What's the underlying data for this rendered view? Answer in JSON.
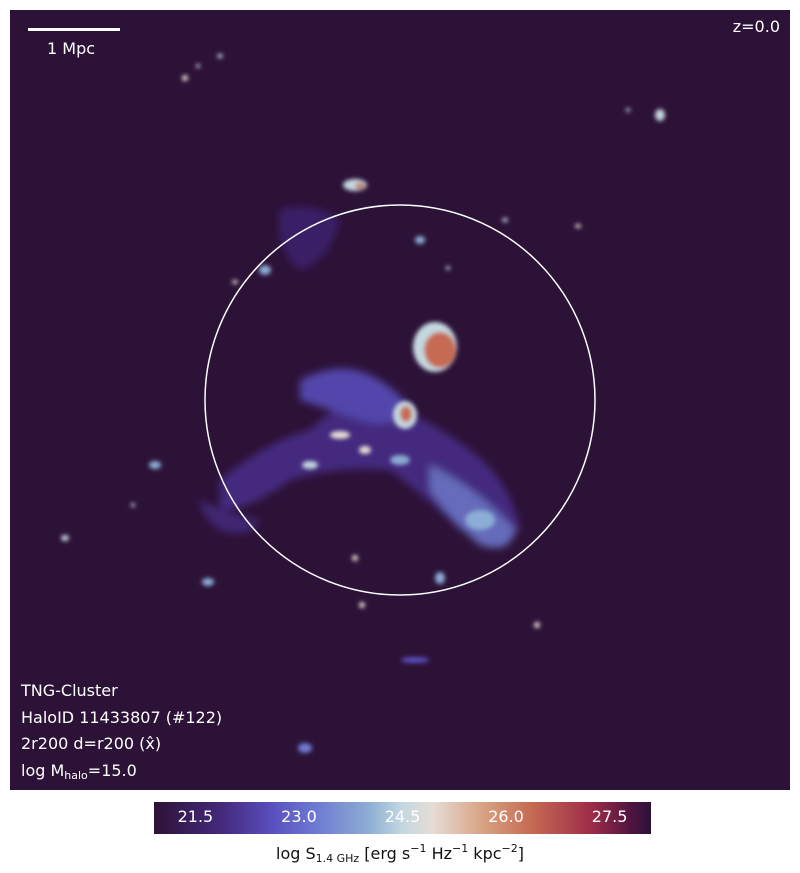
{
  "figure": {
    "scalebar_label": "1 Mpc",
    "redshift": "z=0.0",
    "info": {
      "simulation": "TNG-Cluster",
      "halo_id": "HaloID 11433807 (#122)",
      "projection": "2r200 d=r200 (x̂)",
      "mass_prefix": "log M",
      "mass_sub": "halo",
      "mass_value": "=15.0"
    }
  },
  "colorbar": {
    "ticks": [
      "21.5",
      "23.0",
      "24.5",
      "26.0",
      "27.5"
    ],
    "tick_values": [
      21.5,
      23.0,
      24.5,
      26.0,
      27.5
    ],
    "range": [
      20.9,
      28.1
    ],
    "label_prefix": "log S",
    "label_sub": "1.4 GHz",
    "label_units_1": "[erg s",
    "label_sup_1": "−1",
    "label_units_2": " Hz",
    "label_sup_2": "−1",
    "label_units_3": " kpc",
    "label_sup_3": "−2",
    "label_units_4": "]",
    "colormap": "twilight_shifted"
  },
  "colors": {
    "background": "#2d1238",
    "circle": "#ffffff",
    "low": "#5a50c0",
    "mid": "#8bacd4",
    "high": "#c66a52"
  }
}
